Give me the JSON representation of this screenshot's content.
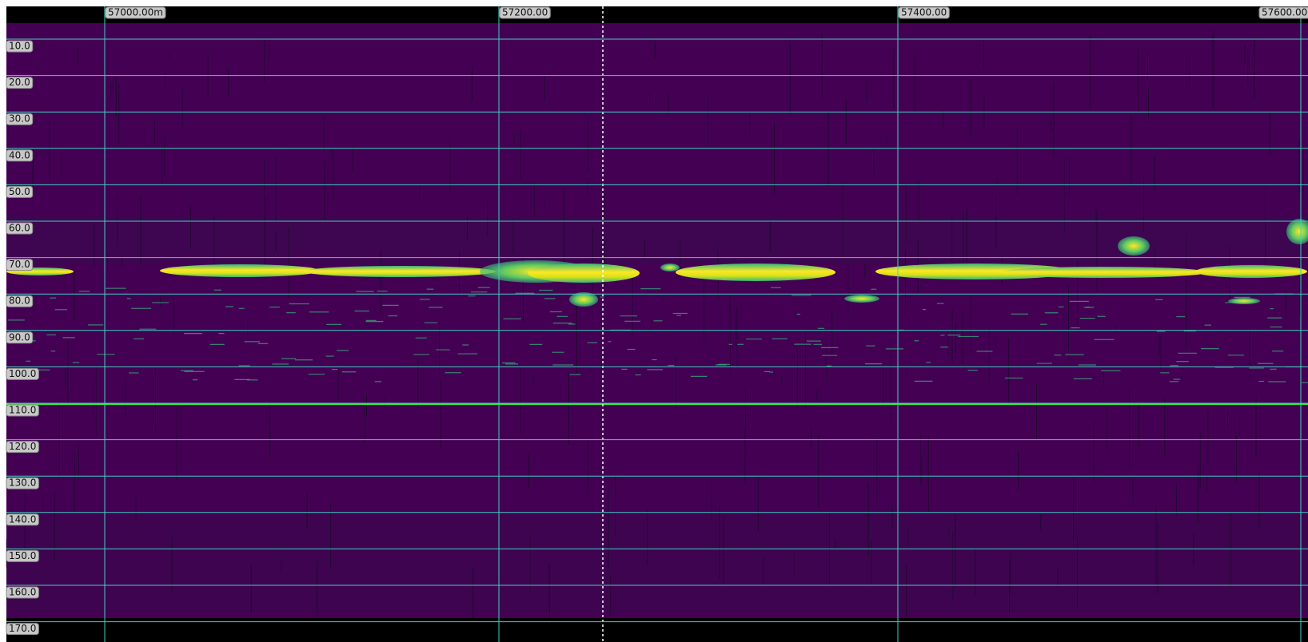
{
  "x_labels": [
    "57000.00m",
    "57200.00",
    "57400.00",
    "57600.00"
  ],
  "depth_labels": [
    "10.0",
    "20.0",
    "30.0",
    "40.0",
    "50.0",
    "60.0",
    "70.0",
    "80.0",
    "90.0",
    "100.0",
    "110.0",
    "120.0",
    "130.0",
    "140.0",
    "150.0",
    "160.0",
    "170.0"
  ]
}
